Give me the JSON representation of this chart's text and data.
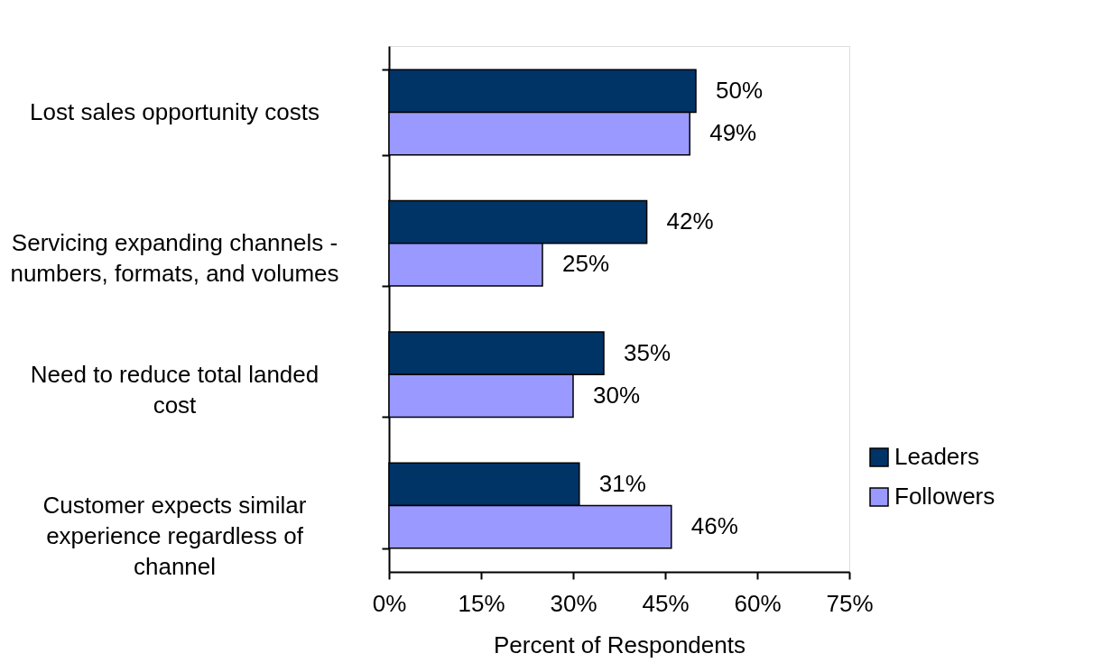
{
  "chart_data": {
    "type": "bar",
    "orientation": "horizontal",
    "categories": [
      "Lost sales opportunity costs",
      "Servicing expanding channels - numbers, formats, and volumes",
      "Need to reduce total landed cost",
      "Customer expects similar experience regardless of channel"
    ],
    "series": [
      {
        "name": "Leaders",
        "color": "#003366",
        "values": [
          50,
          42,
          35,
          31
        ],
        "value_labels": [
          "50%",
          "42%",
          "35%",
          "31%"
        ]
      },
      {
        "name": "Followers",
        "color": "#9999ff",
        "values": [
          49,
          25,
          30,
          46
        ],
        "value_labels": [
          "49%",
          "25%",
          "30%",
          "46%"
        ]
      }
    ],
    "xlabel": "Percent of Respondents",
    "xlim": [
      0,
      75
    ],
    "xticks": [
      {
        "value": 0,
        "label": "0%"
      },
      {
        "value": 15,
        "label": "15%"
      },
      {
        "value": 30,
        "label": "30%"
      },
      {
        "value": 45,
        "label": "45%"
      },
      {
        "value": 60,
        "label": "60%"
      },
      {
        "value": 75,
        "label": "75%"
      }
    ],
    "legend": "bottom right",
    "grid": false
  }
}
